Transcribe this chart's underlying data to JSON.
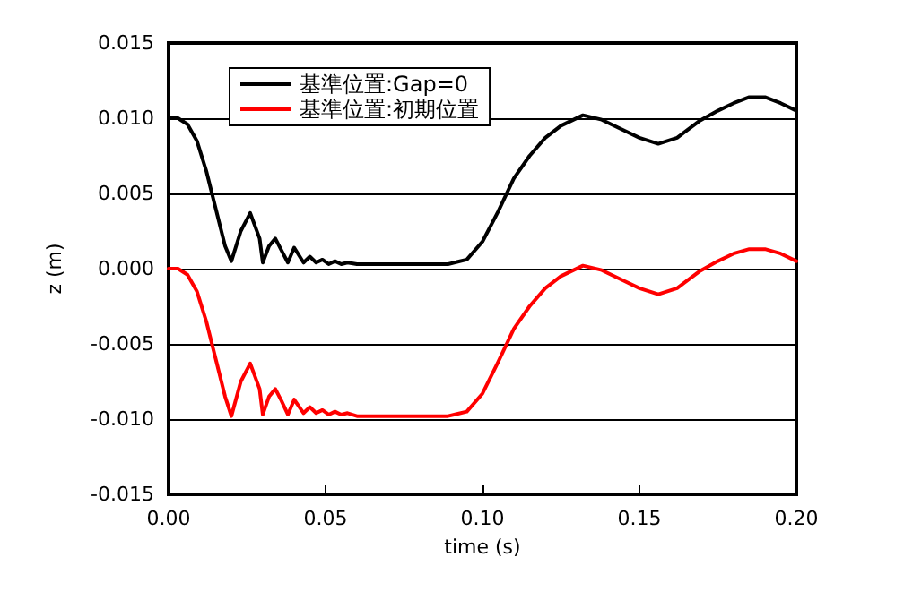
{
  "chart_data": {
    "type": "line",
    "xlabel": "time (s)",
    "ylabel": "z (m)",
    "x": [
      0,
      0.003,
      0.006,
      0.009,
      0.012,
      0.015,
      0.018,
      0.02,
      0.023,
      0.026,
      0.029,
      0.03,
      0.032,
      0.034,
      0.036,
      0.038,
      0.04,
      0.043,
      0.045,
      0.047,
      0.049,
      0.051,
      0.053,
      0.055,
      0.057,
      0.06,
      0.07,
      0.08,
      0.089,
      0.095,
      0.1,
      0.105,
      0.11,
      0.115,
      0.12,
      0.125,
      0.132,
      0.138,
      0.145,
      0.15,
      0.156,
      0.162,
      0.169,
      0.175,
      0.18,
      0.185,
      0.19,
      0.195,
      0.2
    ],
    "series": [
      {
        "name": "基準位置:Gap=0",
        "color": "#000000",
        "values": [
          0.01,
          0.01,
          0.0096,
          0.0085,
          0.0065,
          0.004,
          0.0015,
          0.0005,
          0.0025,
          0.0037,
          0.002,
          0.0004,
          0.0015,
          0.002,
          0.0012,
          0.0004,
          0.0014,
          0.0004,
          0.0008,
          0.0004,
          0.0006,
          0.0003,
          0.0005,
          0.0003,
          0.0004,
          0.0003,
          0.0003,
          0.0003,
          0.0003,
          0.0006,
          0.0018,
          0.0038,
          0.006,
          0.0075,
          0.0087,
          0.0095,
          0.0102,
          0.0099,
          0.0092,
          0.0087,
          0.0083,
          0.0087,
          0.0098,
          0.0105,
          0.011,
          0.0114,
          0.0114,
          0.011,
          0.0105
        ]
      },
      {
        "name": "基準位置:初期位置",
        "color": "#ff0000",
        "values": [
          0,
          0,
          -0.0004,
          -0.0015,
          -0.0035,
          -0.006,
          -0.0085,
          -0.0098,
          -0.0075,
          -0.0063,
          -0.008,
          -0.0097,
          -0.0085,
          -0.008,
          -0.0088,
          -0.0097,
          -0.0087,
          -0.0096,
          -0.0092,
          -0.0096,
          -0.0094,
          -0.0097,
          -0.0095,
          -0.0097,
          -0.0096,
          -0.0098,
          -0.0098,
          -0.0098,
          -0.0098,
          -0.0095,
          -0.0083,
          -0.0062,
          -0.004,
          -0.0025,
          -0.0013,
          -0.0005,
          0.0002,
          -0.0001,
          -0.0008,
          -0.0013,
          -0.0017,
          -0.0013,
          -0.0002,
          0.0005,
          0.001,
          0.0013,
          0.0013,
          0.001,
          0.0005
        ]
      }
    ],
    "xlim": [
      0,
      0.2
    ],
    "xticks": [
      {
        "value": 0,
        "label": "0.00"
      },
      {
        "value": 0.05,
        "label": "0.05"
      },
      {
        "value": 0.1,
        "label": "0.10"
      },
      {
        "value": 0.15,
        "label": "0.15"
      },
      {
        "value": 0.2,
        "label": "0.20"
      }
    ],
    "ylim": [
      -0.015,
      0.015
    ],
    "yticks": [
      {
        "value": -0.015,
        "label": "-0.015"
      },
      {
        "value": -0.01,
        "label": "-0.010"
      },
      {
        "value": -0.005,
        "label": "-0.005"
      },
      {
        "value": 0,
        "label": "0.000"
      },
      {
        "value": 0.005,
        "label": "0.005"
      },
      {
        "value": 0.01,
        "label": "0.010"
      },
      {
        "value": 0.015,
        "label": "0.015"
      }
    ],
    "grid": "y",
    "legend": "top left",
    "marker": "none",
    "line_style": "solid"
  }
}
